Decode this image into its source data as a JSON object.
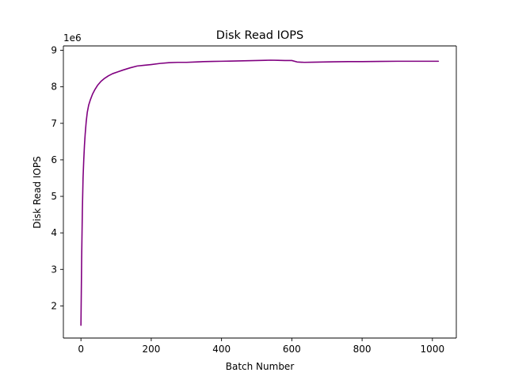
{
  "chart_data": {
    "type": "line",
    "title": "Disk Read IOPS",
    "xlabel": "Batch Number",
    "ylabel": "Disk Read IOPS",
    "y_offset_text": "1e6",
    "xlim": [
      -50,
      1068
    ],
    "ylim": [
      1.12,
      9.12
    ],
    "x_ticks": [
      0,
      200,
      400,
      600,
      800,
      1000
    ],
    "x_tick_labels": [
      "0",
      "200",
      "400",
      "600",
      "800",
      "1000"
    ],
    "y_ticks": [
      2,
      3,
      4,
      5,
      6,
      7,
      8,
      9
    ],
    "y_tick_labels": [
      "2",
      "3",
      "4",
      "5",
      "6",
      "7",
      "8",
      "9"
    ],
    "grid": false,
    "legend": "none",
    "series": [
      {
        "color": "#800080",
        "x": [
          0,
          2,
          4,
          6,
          8,
          10,
          12,
          15,
          18,
          22,
          27,
          33,
          40,
          48,
          57,
          67,
          78,
          90,
          105,
          120,
          140,
          160,
          180,
          200,
          225,
          250,
          275,
          300,
          325,
          350,
          375,
          400,
          425,
          450,
          475,
          500,
          525,
          540,
          560,
          580,
          600,
          615,
          635,
          660,
          690,
          720,
          760,
          800,
          850,
          900,
          950,
          1000,
          1017
        ],
        "y": [
          1.47,
          3.3,
          4.6,
          5.5,
          6.0,
          6.4,
          6.7,
          7.05,
          7.3,
          7.5,
          7.65,
          7.8,
          7.93,
          8.05,
          8.15,
          8.23,
          8.3,
          8.36,
          8.41,
          8.46,
          8.52,
          8.57,
          8.59,
          8.61,
          8.64,
          8.66,
          8.67,
          8.67,
          8.68,
          8.69,
          8.695,
          8.7,
          8.705,
          8.71,
          8.715,
          8.72,
          8.725,
          8.73,
          8.725,
          8.72,
          8.72,
          8.68,
          8.67,
          8.675,
          8.68,
          8.685,
          8.69,
          8.69,
          8.695,
          8.7,
          8.7,
          8.7,
          8.7
        ]
      }
    ]
  }
}
